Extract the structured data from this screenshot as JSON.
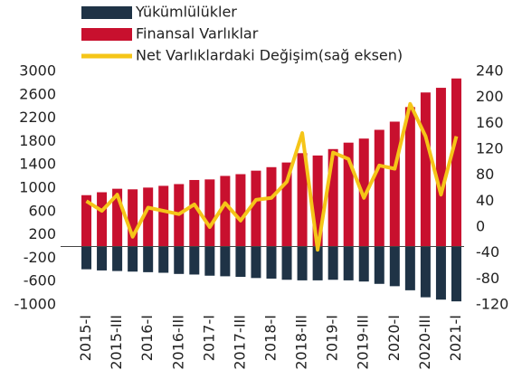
{
  "chart_data": {
    "type": "bar",
    "categories": [
      "2015-I",
      null,
      "2015-III",
      null,
      "2016-I",
      null,
      "2016-III",
      null,
      "2017-I",
      null,
      "2017-III",
      null,
      "2018-I",
      null,
      "2018-III",
      null,
      "2019-I",
      null,
      "2019-III",
      null,
      "2020-I",
      null,
      "2020-III",
      null,
      "2021-I"
    ],
    "series": [
      {
        "name": "Yükümlülükler",
        "color": "#1f3346",
        "values": [
          -390,
          -410,
          -420,
          -430,
          -440,
          -450,
          -470,
          -480,
          -500,
          -510,
          -520,
          -540,
          -550,
          -570,
          -580,
          -580,
          -570,
          -580,
          -600,
          -640,
          -680,
          -750,
          -870,
          -910,
          -940
        ]
      },
      {
        "name": "Finansal Varlıklar",
        "color": "#c8102e",
        "values": [
          880,
          930,
          990,
          980,
          1010,
          1040,
          1070,
          1140,
          1150,
          1210,
          1240,
          1300,
          1360,
          1440,
          1600,
          1560,
          1670,
          1780,
          1850,
          2000,
          2140,
          2390,
          2640,
          2720,
          2880
        ]
      },
      {
        "name": "Net Varlıklardaki Değişim(sağ eksen)",
        "type": "line",
        "axis": "y2",
        "color": "#f5c518",
        "values": [
          40,
          25,
          50,
          -15,
          30,
          25,
          20,
          35,
          0,
          37,
          10,
          42,
          45,
          70,
          145,
          -35,
          115,
          105,
          45,
          95,
          90,
          190,
          140,
          50,
          140
        ]
      }
    ],
    "ylim": [
      -1000,
      3000
    ],
    "yticks": [
      3000,
      2600,
      2200,
      1800,
      1400,
      1000,
      600,
      200,
      -200,
      -600,
      -1000
    ],
    "y2lim": [
      -120,
      240
    ],
    "y2ticks": [
      240,
      200,
      160,
      120,
      80,
      40,
      0,
      -40,
      -80,
      -120
    ],
    "stacked": false,
    "grid": false,
    "legend": "top-left"
  }
}
